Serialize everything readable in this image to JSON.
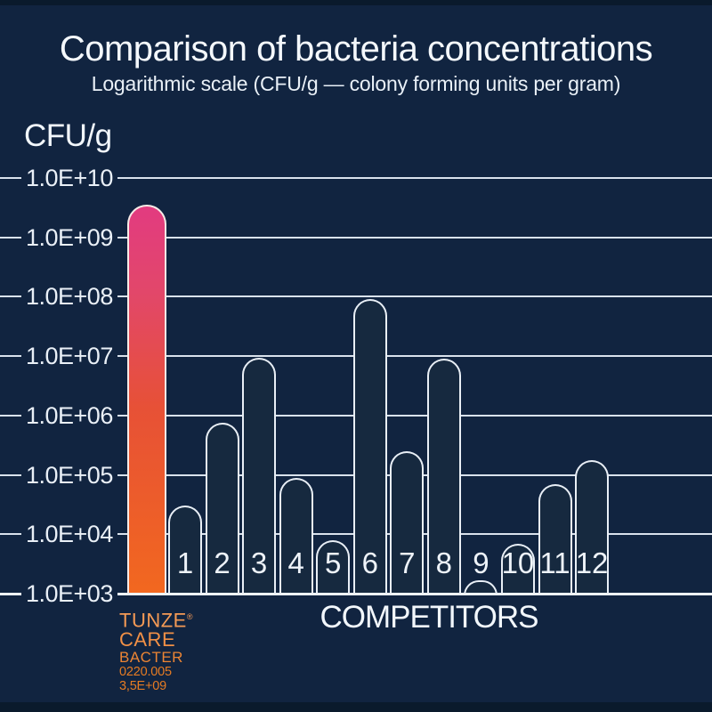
{
  "header": {
    "title": "Comparison of bacteria concentrations",
    "subtitle": "Logarithmic scale (CFU/g — colony forming units per gram)"
  },
  "axis": {
    "y_unit_label": "CFU/g",
    "x_label": "COMPETITORS"
  },
  "brand_block": {
    "line1": "TUNZE",
    "reg": "®",
    "line2": "CARE",
    "line3": "BACTER",
    "sku": "0220.005",
    "value_label": "3,5E+09"
  },
  "colors": {
    "background": "#112440",
    "band": "#0a1a2c",
    "gridline": "#d9e2ec",
    "bar_fill": "#16293f",
    "bar_outline": "#e9eff6",
    "brand_gradient_top": "#e23b80",
    "brand_gradient_bottom": "#f2681f",
    "brand_text_orange": "#ec8534",
    "text": "#f4f8fc"
  },
  "chart_data": {
    "type": "bar",
    "scale": "log10",
    "title": "Comparison of bacteria concentrations",
    "subtitle": "Logarithmic scale (CFU/g — colony forming units per gram)",
    "ylabel": "CFU/g",
    "xlabel": "COMPETITORS",
    "ylim": [
      1000,
      10000000000
    ],
    "grid": true,
    "legend": false,
    "y_ticks": [
      {
        "exp": 10,
        "label": "1.0E+10"
      },
      {
        "exp": 9,
        "label": "1.0E+09"
      },
      {
        "exp": 8,
        "label": "1.0E+08"
      },
      {
        "exp": 7,
        "label": "1.0E+07"
      },
      {
        "exp": 6,
        "label": "1.0E+06"
      },
      {
        "exp": 5,
        "label": "1.0E+05"
      },
      {
        "exp": 4,
        "label": "1.0E+04"
      },
      {
        "exp": 3,
        "label": "1.0E+03"
      }
    ],
    "series": [
      {
        "label": "TUNZE CARE BACTER 0220.005",
        "kind": "brand",
        "value": 3500000000,
        "value_label": "3,5E+09"
      },
      {
        "label": "1",
        "kind": "competitor",
        "value": 30000
      },
      {
        "label": "2",
        "kind": "competitor",
        "value": 750000
      },
      {
        "label": "3",
        "kind": "competitor",
        "value": 9500000
      },
      {
        "label": "4",
        "kind": "competitor",
        "value": 90000
      },
      {
        "label": "5",
        "kind": "competitor",
        "value": 8000
      },
      {
        "label": "6",
        "kind": "competitor",
        "value": 90000000
      },
      {
        "label": "7",
        "kind": "competitor",
        "value": 250000
      },
      {
        "label": "8",
        "kind": "competitor",
        "value": 9000000
      },
      {
        "label": "9",
        "kind": "competitor",
        "value": 1700
      },
      {
        "label": "10",
        "kind": "competitor",
        "value": 7000
      },
      {
        "label": "11",
        "kind": "competitor",
        "value": 70000
      },
      {
        "label": "12",
        "kind": "competitor",
        "value": 180000
      }
    ]
  }
}
